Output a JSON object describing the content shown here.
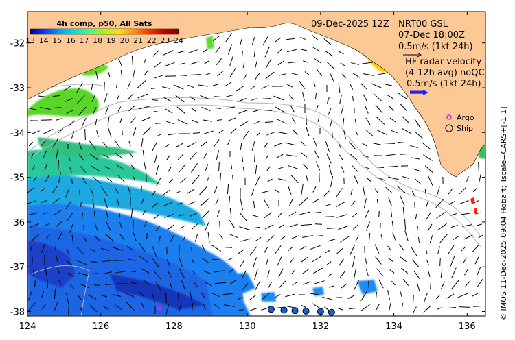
{
  "colorbar": {
    "title": "4h comp, p50, All Sats",
    "ticks": [
      "13",
      "14",
      "15",
      "16",
      "17",
      "18",
      "19",
      "20",
      "21",
      "22",
      "23",
      "24"
    ],
    "colors": [
      "#00008f",
      "#0040ff",
      "#00a0ff",
      "#00e0e0",
      "#40ff80",
      "#a0ff00",
      "#ffe000",
      "#ff9000",
      "#ff3000",
      "#c00000",
      "#800000"
    ]
  },
  "header": {
    "date": "09-Dec-2025 12Z",
    "product": "NRT00 GSL",
    "obs_time": "07-Dec 18:00Z",
    "scale1": "0.5m/s (1kt 24h)",
    "hf_line1": "HF radar velocity",
    "hf_line2": "(4-12h avg) noQC",
    "scale2": "0.5m/s (1kt 24h)"
  },
  "legend": {
    "argo": "Argo",
    "ship": "Ship"
  },
  "axes": {
    "x_ticks": [
      "124",
      "126",
      "128",
      "130",
      "132",
      "134",
      "136"
    ],
    "y_ticks": [
      "-32",
      "-33",
      "-34",
      "-35",
      "-36",
      "-37",
      "-38"
    ],
    "lon_range": [
      124,
      136.5
    ],
    "lat_range": [
      -38.1,
      -31.3
    ]
  },
  "credit": "© IMOS 11-Dec-2025 09:04 Hobart; Tscale=CARS+[-1 1]",
  "colors": {
    "land": "#fcc895",
    "argo": "#e020e0",
    "hf_arrow": "#ff2000"
  },
  "ships": [
    [
      130.65,
      -37.95
    ],
    [
      131.0,
      -37.97
    ],
    [
      131.3,
      -37.98
    ],
    [
      131.6,
      -37.99
    ],
    [
      132.0,
      -38.0
    ],
    [
      132.3,
      -38.02
    ]
  ],
  "argo": [
    [
      127.6,
      -37.92
    ]
  ]
}
